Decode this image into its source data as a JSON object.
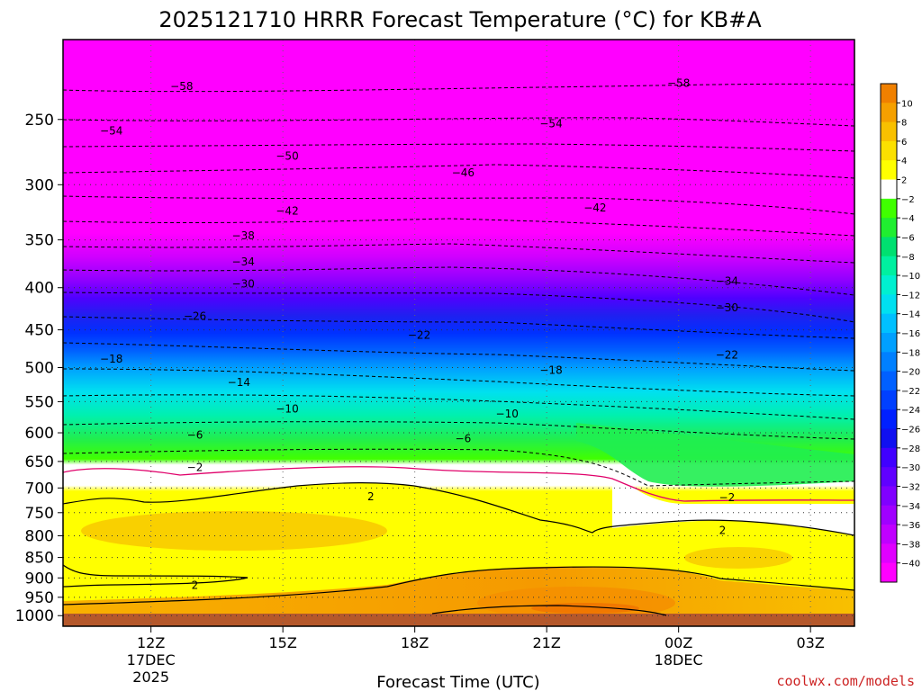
{
  "chart_data": {
    "type": "heatmap",
    "title": "2025121710 HRRR Forecast Temperature (°C) for KB#A",
    "xlabel": "Forecast Time (UTC)",
    "ylabel": "",
    "credit": "coolwx.com/models",
    "x_ticks": [
      {
        "label": "12Z",
        "sub": [
          "17DEC",
          "2025"
        ],
        "hour": 12
      },
      {
        "label": "15Z",
        "sub": [],
        "hour": 15
      },
      {
        "label": "18Z",
        "sub": [],
        "hour": 18
      },
      {
        "label": "21Z",
        "sub": [],
        "hour": 21
      },
      {
        "label": "00Z",
        "sub": [
          "18DEC"
        ],
        "hour": 24
      },
      {
        "label": "03Z",
        "sub": [],
        "hour": 27
      }
    ],
    "xlim": [
      10,
      28
    ],
    "y_axis": "pressure (hPa), log scale, inverted",
    "ylim": [
      1030,
      200
    ],
    "y_ticks": [
      250,
      300,
      350,
      400,
      450,
      500,
      550,
      600,
      650,
      700,
      750,
      800,
      850,
      900,
      950,
      1000
    ],
    "grid": true,
    "colorbar": {
      "labels": [
        "10",
        "8",
        "6",
        "4",
        "2",
        "−2",
        "−4",
        "−6",
        "−8",
        "−10",
        "−12",
        "−14",
        "−16",
        "−18",
        "−20",
        "−22",
        "−24",
        "−26",
        "−28",
        "−30",
        "−32",
        "−34",
        "−36",
        "−38",
        "−40"
      ],
      "colors": [
        "#f08000",
        "#f5a000",
        "#f8c000",
        "#fbe000",
        "#ffff00",
        "#ffffff",
        "#40ff00",
        "#20ee30",
        "#00e070",
        "#00f0a0",
        "#00f0d0",
        "#00e0f0",
        "#00c0ff",
        "#00a0ff",
        "#0080ff",
        "#0060ff",
        "#0040ff",
        "#0020ff",
        "#1010f0",
        "#4000ff",
        "#6000ff",
        "#8000ff",
        "#a000ff",
        "#c000ff",
        "#e000ff",
        "#ff00ff"
      ]
    },
    "contour_labels": [
      {
        "text": "−58",
        "hour": 12.7,
        "hpa": 228
      },
      {
        "text": "−58",
        "hour": 24.0,
        "hpa": 226
      },
      {
        "text": "−54",
        "hour": 11.1,
        "hpa": 258
      },
      {
        "text": "−54",
        "hour": 21.1,
        "hpa": 253
      },
      {
        "text": "−50",
        "hour": 15.1,
        "hpa": 277
      },
      {
        "text": "−46",
        "hour": 19.1,
        "hpa": 290
      },
      {
        "text": "−42",
        "hour": 15.1,
        "hpa": 323
      },
      {
        "text": "−42",
        "hour": 22.1,
        "hpa": 320
      },
      {
        "text": "−38",
        "hour": 14.1,
        "hpa": 346
      },
      {
        "text": "−34",
        "hour": 14.1,
        "hpa": 372
      },
      {
        "text": "−34",
        "hour": 25.1,
        "hpa": 393
      },
      {
        "text": "−30",
        "hour": 14.1,
        "hpa": 396
      },
      {
        "text": "−30",
        "hour": 25.1,
        "hpa": 423
      },
      {
        "text": "−26",
        "hour": 13.0,
        "hpa": 433
      },
      {
        "text": "−22",
        "hour": 18.1,
        "hpa": 457
      },
      {
        "text": "−22",
        "hour": 25.1,
        "hpa": 483
      },
      {
        "text": "−18",
        "hour": 11.1,
        "hpa": 488
      },
      {
        "text": "−18",
        "hour": 21.1,
        "hpa": 504
      },
      {
        "text": "−14",
        "hour": 14.0,
        "hpa": 521
      },
      {
        "text": "−10",
        "hour": 15.1,
        "hpa": 561
      },
      {
        "text": "−10",
        "hour": 20.1,
        "hpa": 569
      },
      {
        "text": "−6",
        "hour": 13.0,
        "hpa": 604
      },
      {
        "text": "−6",
        "hour": 19.1,
        "hpa": 610
      },
      {
        "text": "−2",
        "hour": 13.0,
        "hpa": 661
      },
      {
        "text": "−2",
        "hour": 25.1,
        "hpa": 719
      },
      {
        "text": "2",
        "hour": 17.0,
        "hpa": 717
      },
      {
        "text": "2",
        "hour": 25.0,
        "hpa": 788
      },
      {
        "text": "2",
        "hour": 13.0,
        "hpa": 919
      }
    ]
  }
}
